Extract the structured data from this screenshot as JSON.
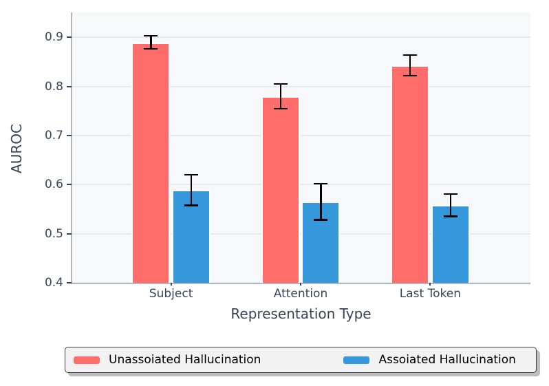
{
  "chart_data": {
    "type": "bar",
    "title": "",
    "xlabel": "Representation Type",
    "ylabel": "AUROC",
    "categories": [
      "Subject",
      "Attention",
      "Last Token"
    ],
    "series": [
      {
        "name": "Unassoiated Hallucination",
        "color": "#ff6d6a",
        "values": [
          0.89,
          0.78,
          0.843
        ],
        "errors": [
          0.013,
          0.025,
          0.021
        ]
      },
      {
        "name": "Assoiated Hallucination",
        "color": "#3498db",
        "values": [
          0.589,
          0.565,
          0.558
        ],
        "errors": [
          0.031,
          0.037,
          0.023
        ]
      }
    ],
    "yticks": [
      0.4,
      0.5,
      0.6,
      0.7,
      0.8,
      0.9
    ],
    "ylim": [
      0.4,
      0.951
    ],
    "grid": "horizontal-only",
    "legend_position": "bottom",
    "colors": {
      "plot_background": "#f7f8f9",
      "figure_background": "#ffffff",
      "gridline": "#e7eaec",
      "spine": "#b0b8bd",
      "tick_and_label_text": "#36455a",
      "error_bar": "#000000",
      "bar_edge": "#ffffff",
      "legend_background": "#f2f2f3",
      "legend_border": "#3d3d3d",
      "legend_shadow": "#bdbdbd"
    }
  }
}
